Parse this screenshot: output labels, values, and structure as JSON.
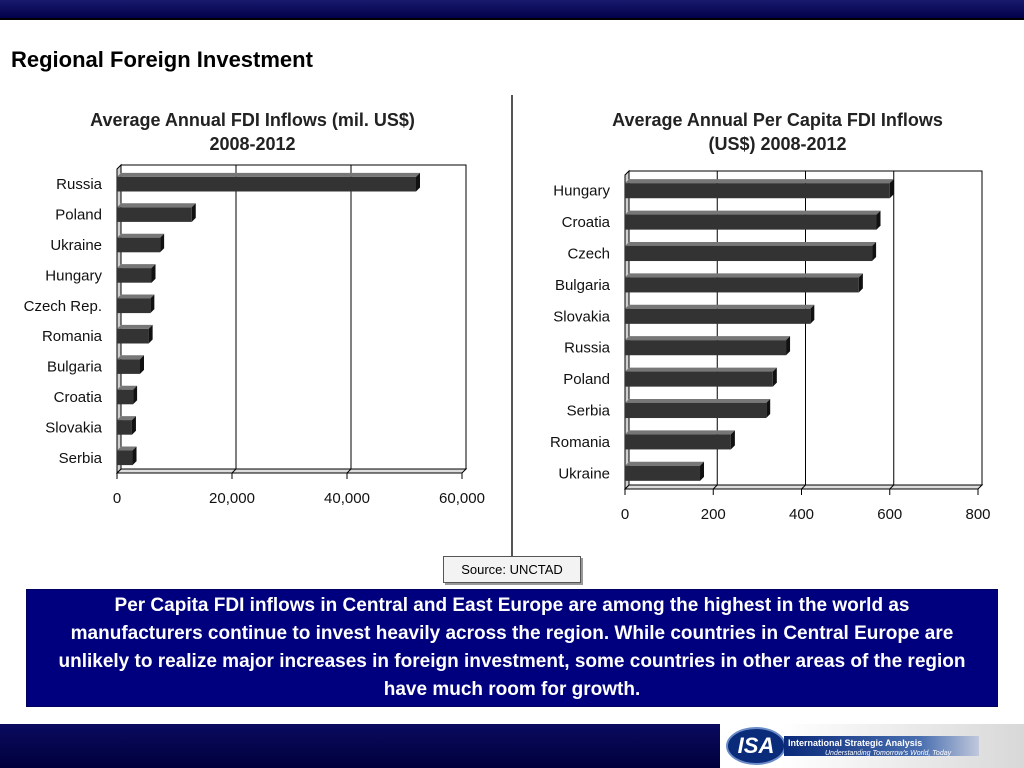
{
  "slide": {
    "title": "Regional Foreign Investment",
    "source": "Source: UNCTAD",
    "summary": "Per Capita FDI inflows in Central and East Europe are among the highest in the world as manufacturers continue to invest heavily across the region.  While countries in Central Europe are unlikely to realize major increases in foreign investment, some countries in other areas of the region have much room for growth.",
    "logo": {
      "abbr": "ISA",
      "name": "International Strategic Analysis",
      "tagline": "Understanding Tomorrow's World, Today"
    }
  },
  "chart_data": [
    {
      "type": "bar",
      "orientation": "horizontal",
      "title": "Average Annual FDI Inflows (mil. US$) 2008-2012",
      "title_lines": [
        "Average Annual FDI Inflows (mil. US$)",
        "2008-2012"
      ],
      "categories": [
        "Russia",
        "Poland",
        "Ukraine",
        "Hungary",
        "Czech Rep.",
        "Romania",
        "Bulgaria",
        "Croatia",
        "Slovakia",
        "Serbia"
      ],
      "values": [
        52000,
        13000,
        7500,
        6000,
        5800,
        5500,
        4000,
        2800,
        2600,
        2700
      ],
      "xlim": [
        0,
        60000
      ],
      "xticks": [
        0,
        20000,
        40000,
        60000
      ],
      "xtick_labels": [
        "0",
        "20,000",
        "40,000",
        "60,000"
      ],
      "grid": true,
      "bar_color": "#333333"
    },
    {
      "type": "bar",
      "orientation": "horizontal",
      "title": "Average Annual Per Capita FDI Inflows (US$) 2008-2012",
      "title_lines": [
        "Average Annual Per Capita FDI Inflows",
        "(US$) 2008-2012"
      ],
      "categories": [
        "Hungary",
        "Croatia",
        "Czech",
        "Bulgaria",
        "Slovakia",
        "Russia",
        "Poland",
        "Serbia",
        "Romania",
        "Ukraine"
      ],
      "values": [
        600,
        570,
        560,
        530,
        420,
        365,
        335,
        320,
        240,
        170
      ],
      "xlim": [
        0,
        800
      ],
      "xticks": [
        0,
        200,
        400,
        600,
        800
      ],
      "xtick_labels": [
        "0",
        "200",
        "400",
        "600",
        "800"
      ],
      "grid": true,
      "bar_color": "#333333"
    }
  ]
}
